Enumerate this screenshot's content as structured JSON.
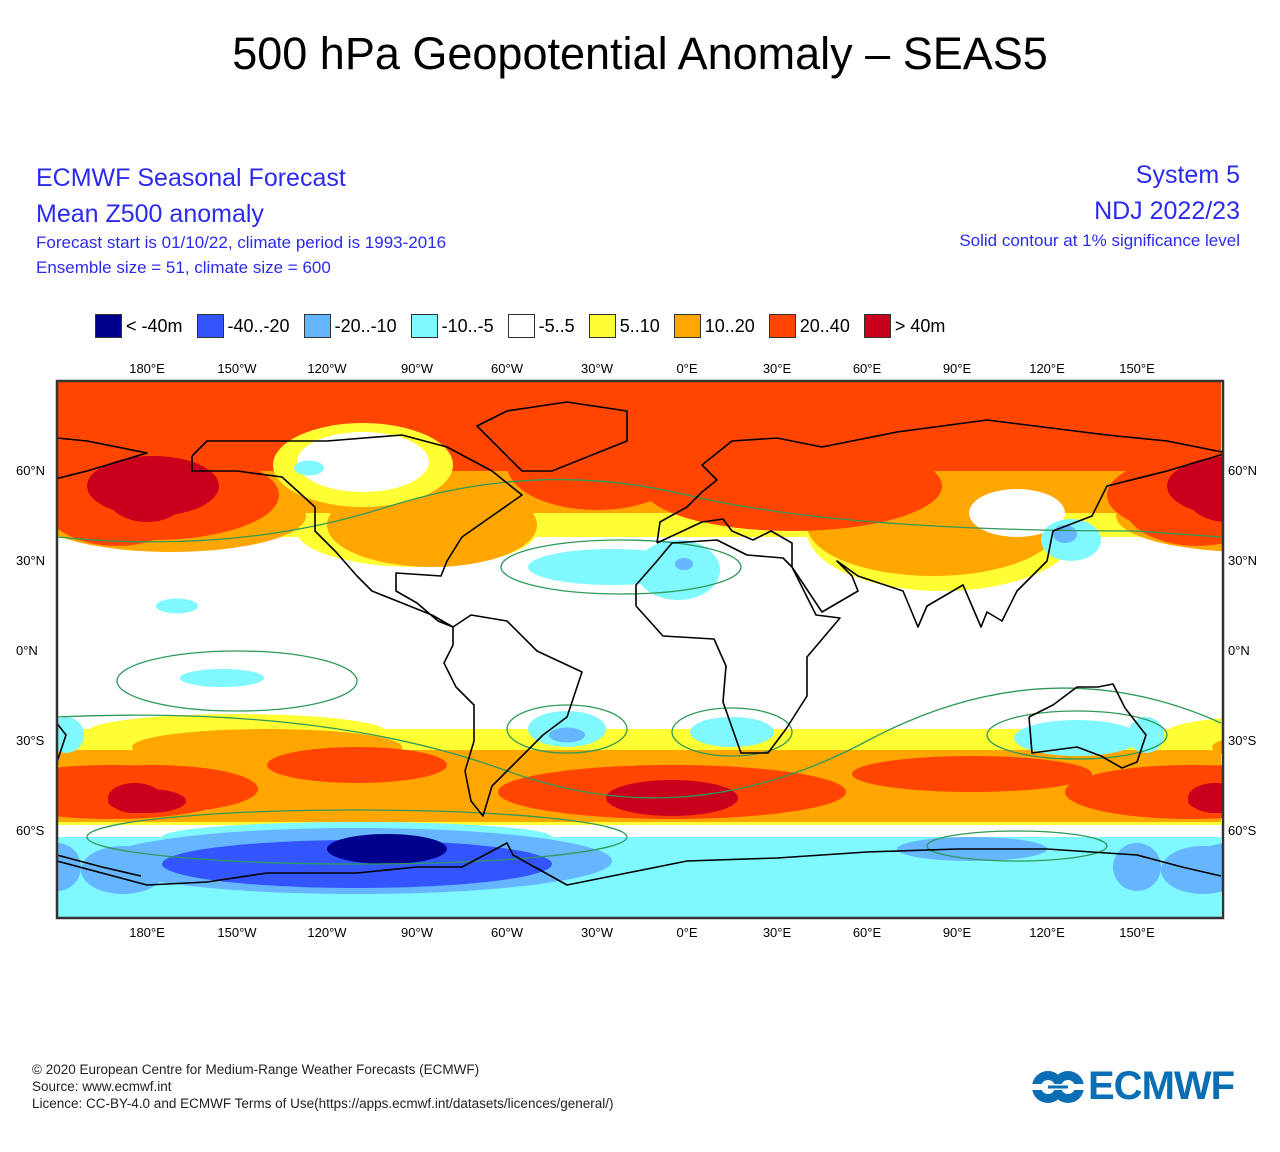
{
  "title": "500 hPa Geopotential Anomaly – SEAS5",
  "header_left": {
    "line1": "ECMWF Seasonal Forecast",
    "line2": "Mean Z500 anomaly",
    "line3": "Forecast start is 01/10/22, climate period is 1993-2016",
    "line4": "Ensemble size = 51, climate size = 600"
  },
  "header_right": {
    "line1": "System 5",
    "line2": "NDJ 2022/23",
    "line3": "Solid contour at 1% significance level"
  },
  "legend": [
    {
      "label": "< -40m",
      "color": "#00008c"
    },
    {
      "label": "-40..-20",
      "color": "#3355ff"
    },
    {
      "label": "-20..-10",
      "color": "#66b5ff"
    },
    {
      "label": "-10..-5",
      "color": "#80f8ff"
    },
    {
      "label": "-5..5",
      "color": "#ffffff"
    },
    {
      "label": "5..10",
      "color": "#ffff33"
    },
    {
      "label": "10..20",
      "color": "#ffa600"
    },
    {
      "label": "20..40",
      "color": "#ff4500"
    },
    {
      "label": "> 40m",
      "color": "#c8001e"
    }
  ],
  "chart_data": {
    "type": "map",
    "projection": "equirectangular",
    "lon_range": [
      150,
      178.7
    ],
    "lat_range": [
      -89,
      90
    ],
    "x_ticks": [
      {
        "lon": -180,
        "label": "180°E"
      },
      {
        "lon": -150,
        "label": "150°W"
      },
      {
        "lon": -120,
        "label": "120°W"
      },
      {
        "lon": -90,
        "label": "90°W"
      },
      {
        "lon": -60,
        "label": "60°W"
      },
      {
        "lon": -30,
        "label": "30°W"
      },
      {
        "lon": 0,
        "label": "0°E"
      },
      {
        "lon": 30,
        "label": "30°E"
      },
      {
        "lon": 60,
        "label": "60°E"
      },
      {
        "lon": 90,
        "label": "90°E"
      },
      {
        "lon": 120,
        "label": "120°E"
      },
      {
        "lon": 150,
        "label": "150°E"
      }
    ],
    "y_ticks": [
      {
        "lat": 60,
        "label": "60°N"
      },
      {
        "lat": 30,
        "label": "30°N"
      },
      {
        "lat": 0,
        "label": "0°N"
      },
      {
        "lat": -30,
        "label": "30°S"
      },
      {
        "lat": -60,
        "label": "60°S"
      }
    ],
    "anomaly_regions": [
      {
        "level": 5,
        "shape": "rect",
        "lon": [
          -210,
          178
        ],
        "lat": [
          38,
          90
        ]
      },
      {
        "level": 5,
        "shape": "ellipse",
        "lon": 85,
        "lat": 40,
        "rlon": 45,
        "rlat": 20
      },
      {
        "level": 5,
        "shape": "ellipse",
        "lon": -90,
        "lat": 40,
        "rlon": 40,
        "rlat": 12
      },
      {
        "level": 6,
        "shape": "rect",
        "lon": [
          -210,
          178
        ],
        "lat": [
          46,
          90
        ]
      },
      {
        "level": 6,
        "shape": "ellipse",
        "lon": -172,
        "lat": 45,
        "rlon": 45,
        "rlat": 12
      },
      {
        "level": 6,
        "shape": "ellipse",
        "lon": -85,
        "lat": 42,
        "rlon": 35,
        "rlat": 14
      },
      {
        "level": 6,
        "shape": "ellipse",
        "lon": 82,
        "lat": 42,
        "rlon": 42,
        "rlat": 17
      },
      {
        "level": 7,
        "shape": "rect",
        "lon": [
          -210,
          178
        ],
        "lat": [
          60,
          90
        ]
      },
      {
        "level": 7,
        "shape": "ellipse",
        "lon": -178,
        "lat": 52,
        "rlon": 42,
        "rlat": 15
      },
      {
        "level": 7,
        "shape": "ellipse",
        "lon": 35,
        "lat": 55,
        "rlon": 50,
        "rlat": 15
      },
      {
        "level": 7,
        "shape": "ellipse",
        "lon": -30,
        "lat": 62,
        "rlon": 30,
        "rlat": 15
      },
      {
        "level": 7,
        "shape": "ellipse",
        "lon": 170,
        "lat": 50,
        "rlon": 25,
        "rlat": 15
      },
      {
        "level": 8,
        "shape": "ellipse",
        "lon": -178,
        "lat": 55,
        "rlon": 22,
        "rlat": 10
      },
      {
        "level": 8,
        "shape": "ellipse",
        "lon": 180,
        "lat": 53,
        "rlon": 14,
        "rlat": 10
      },
      {
        "level": 5,
        "shape": "ellipse",
        "lon": -108,
        "lat": 62,
        "rlon": 30,
        "rlat": 14
      },
      {
        "level": 4,
        "shape": "ellipse",
        "lon": -108,
        "lat": 63,
        "rlon": 22,
        "rlat": 10
      },
      {
        "level": 3,
        "shape": "ellipse",
        "lon": -126,
        "lat": 61,
        "rlon": 5,
        "rlat": 2.5
      },
      {
        "level": 4,
        "shape": "ellipse",
        "lon": 110,
        "lat": 46,
        "rlon": 16,
        "rlat": 8
      },
      {
        "level": 3,
        "shape": "ellipse",
        "lon": 128,
        "lat": 37,
        "rlon": 10,
        "rlat": 7
      },
      {
        "level": 2,
        "shape": "ellipse",
        "lon": 126,
        "lat": 39,
        "rlon": 4,
        "rlat": 3
      },
      {
        "level": 3,
        "shape": "ellipse",
        "lon": -25,
        "lat": 28,
        "rlon": 28,
        "rlat": 6
      },
      {
        "level": 3,
        "shape": "ellipse",
        "lon": -3,
        "lat": 27,
        "rlon": 14,
        "rlat": 10
      },
      {
        "level": 2,
        "shape": "ellipse",
        "lon": -1,
        "lat": 29,
        "rlon": 3,
        "rlat": 2
      },
      {
        "level": 3,
        "shape": "ellipse",
        "lon": -155,
        "lat": -9,
        "rlon": 14,
        "rlat": 3
      },
      {
        "level": 3,
        "shape": "ellipse",
        "lon": -170,
        "lat": 15,
        "rlon": 7,
        "rlat": 2.5
      },
      {
        "level": 5,
        "shape": "rect",
        "lon": [
          -210,
          178
        ],
        "lat": [
          -58,
          -26
        ]
      },
      {
        "level": 5,
        "shape": "ellipse",
        "lon": -150,
        "lat": -27,
        "rlon": 50,
        "rlat": 6
      },
      {
        "level": 6,
        "shape": "rect",
        "lon": [
          -210,
          178
        ],
        "lat": [
          -57,
          -33
        ]
      },
      {
        "level": 6,
        "shape": "ellipse",
        "lon": -140,
        "lat": -32,
        "rlon": 45,
        "rlat": 6
      },
      {
        "level": 7,
        "shape": "ellipse",
        "lon": -178,
        "lat": -46,
        "rlon": 35,
        "rlat": 8
      },
      {
        "level": 7,
        "shape": "ellipse",
        "lon": -110,
        "lat": -38,
        "rlon": 30,
        "rlat": 6
      },
      {
        "level": 7,
        "shape": "ellipse",
        "lon": -5,
        "lat": -47,
        "rlon": 58,
        "rlat": 9
      },
      {
        "level": 7,
        "shape": "ellipse",
        "lon": 95,
        "lat": -41,
        "rlon": 40,
        "rlat": 6
      },
      {
        "level": 7,
        "shape": "ellipse",
        "lon": 168,
        "lat": -47,
        "rlon": 42,
        "rlat": 9
      },
      {
        "level": 8,
        "shape": "ellipse",
        "lon": -180,
        "lat": -50,
        "rlon": 13,
        "rlat": 4
      },
      {
        "level": 8,
        "shape": "ellipse",
        "lon": -5,
        "lat": -49,
        "rlon": 22,
        "rlat": 6
      },
      {
        "level": 8,
        "shape": "ellipse",
        "lon": 176,
        "lat": -49,
        "rlon": 9,
        "rlat": 5
      },
      {
        "level": 3,
        "shape": "ellipse",
        "lon": -40,
        "lat": -26,
        "rlon": 13,
        "rlat": 6
      },
      {
        "level": 2,
        "shape": "ellipse",
        "lon": -40,
        "lat": -28,
        "rlon": 6,
        "rlat": 2.5
      },
      {
        "level": 3,
        "shape": "ellipse",
        "lon": 15,
        "lat": -27,
        "rlon": 14,
        "rlat": 5
      },
      {
        "level": 3,
        "shape": "ellipse",
        "lon": 130,
        "lat": -29,
        "rlon": 21,
        "rlat": 6
      },
      {
        "level": 3,
        "shape": "ellipse",
        "lon": -207,
        "lat": -28,
        "rlon": 6,
        "rlat": 6
      },
      {
        "level": 3,
        "shape": "rect",
        "lon": [
          -210,
          178
        ],
        "lat": [
          -89,
          -62
        ]
      },
      {
        "level": 3,
        "shape": "ellipse",
        "lon": -110,
        "lat": -62,
        "rlon": 65,
        "rlat": 5
      },
      {
        "level": 2,
        "shape": "ellipse",
        "lon": -110,
        "lat": -70,
        "rlon": 85,
        "rlat": 11
      },
      {
        "level": 2,
        "shape": "ellipse",
        "lon": 95,
        "lat": -66,
        "rlon": 25,
        "rlat": 4
      },
      {
        "level": 2,
        "shape": "ellipse",
        "lon": 172,
        "lat": -73,
        "rlon": 14,
        "rlat": 8
      },
      {
        "level": 2,
        "shape": "ellipse",
        "lon": -210,
        "lat": -72,
        "rlon": 8,
        "rlat": 8
      },
      {
        "level": 1,
        "shape": "ellipse",
        "lon": -110,
        "lat": -71,
        "rlon": 65,
        "rlat": 8
      },
      {
        "level": 0,
        "shape": "ellipse",
        "lon": -100,
        "lat": -66,
        "rlon": 20,
        "rlat": 5
      }
    ]
  },
  "footer": {
    "line1": "© 2020 European Centre for Medium-Range Weather Forecasts (ECMWF)",
    "line2": "Source: www.ecmwf.int",
    "line3": "Licence: CC-BY-4.0 and ECMWF Terms of Use(https://apps.ecmwf.int/datasets/licences/general/)"
  },
  "logo": {
    "text": "ECMWF",
    "color": "#0a6eb4"
  }
}
